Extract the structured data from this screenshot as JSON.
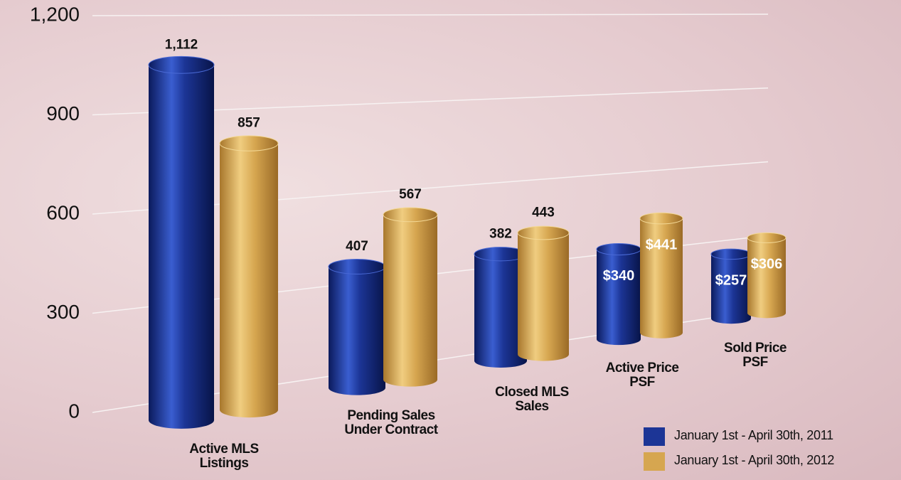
{
  "chart_data": {
    "type": "bar",
    "categories": [
      "Active MLS Listings",
      "Pending Sales Under Contract",
      "Closed MLS Sales",
      "Active Price PSF",
      "Sold Price PSF"
    ],
    "series": [
      {
        "name": "January 1st - April 30th, 2011",
        "color": "#1c3596",
        "values": [
          1112,
          407,
          382,
          340,
          257
        ],
        "value_labels": [
          "1,112",
          "407",
          "382",
          "$340",
          "$257"
        ]
      },
      {
        "name": "January 1st - April 30th, 2012",
        "color": "#d6a650",
        "values": [
          857,
          567,
          443,
          441,
          306
        ],
        "value_labels": [
          "857",
          "567",
          "443",
          "$441",
          "$306"
        ]
      }
    ],
    "ylim": [
      0,
      1200
    ],
    "yticks": [
      0,
      300,
      600,
      900,
      {
        "value": 1200,
        "label": "1,200"
      }
    ],
    "grid": true,
    "legend": "lower right"
  }
}
